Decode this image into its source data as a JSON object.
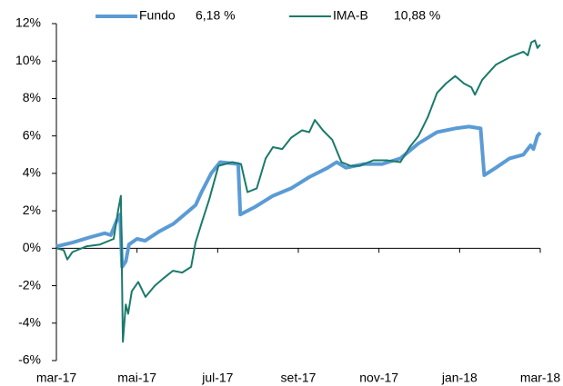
{
  "chart_data": {
    "type": "line",
    "xlim": [
      0,
      12
    ],
    "xticks": [
      {
        "value": 0,
        "label": "mar-17"
      },
      {
        "value": 2,
        "label": "mai-17"
      },
      {
        "value": 4,
        "label": "jul-17"
      },
      {
        "value": 6,
        "label": "set-17"
      },
      {
        "value": 8,
        "label": "nov-17"
      },
      {
        "value": 10,
        "label": "jan-18"
      },
      {
        "value": 12,
        "label": "mar-18"
      }
    ],
    "ylim": [
      -6,
      12
    ],
    "yticks": [
      {
        "value": -6,
        "label": "-6%"
      },
      {
        "value": -4,
        "label": "-4%"
      },
      {
        "value": -2,
        "label": "-2%"
      },
      {
        "value": 0,
        "label": "0%"
      },
      {
        "value": 2,
        "label": "2%"
      },
      {
        "value": 4,
        "label": "4%"
      },
      {
        "value": 6,
        "label": "6%"
      },
      {
        "value": 8,
        "label": "8%"
      },
      {
        "value": 10,
        "label": "10%"
      },
      {
        "value": 12,
        "label": "12%"
      }
    ],
    "series": [
      {
        "name": "Fundo",
        "legend_value": "6,18 %",
        "color": "#5b9bd5",
        "width": 4,
        "x": [
          0,
          0.4,
          0.85,
          1.2,
          1.35,
          1.5,
          1.58,
          1.63,
          1.72,
          1.8,
          2.0,
          2.2,
          2.55,
          2.9,
          3.23,
          3.45,
          3.6,
          3.84,
          4.06,
          4.51,
          4.56,
          4.92,
          5.37,
          5.82,
          6.27,
          6.73,
          6.95,
          7.18,
          7.63,
          8.08,
          8.53,
          8.98,
          9.44,
          9.89,
          10.23,
          10.52,
          10.61,
          10.9,
          11.24,
          11.58,
          11.76,
          11.83,
          11.93,
          12.0
        ],
        "values": [
          0.1,
          0.3,
          0.6,
          0.8,
          0.7,
          1.5,
          1.8,
          -1.0,
          -0.7,
          0.2,
          0.5,
          0.4,
          0.9,
          1.3,
          1.9,
          2.3,
          3.0,
          4.0,
          4.6,
          4.5,
          1.8,
          2.2,
          2.8,
          3.2,
          3.8,
          4.3,
          4.6,
          4.3,
          4.5,
          4.5,
          4.8,
          5.6,
          6.2,
          6.4,
          6.5,
          6.4,
          3.9,
          4.3,
          4.8,
          5.0,
          5.5,
          5.3,
          6.0,
          6.18
        ]
      },
      {
        "name": "IMA-B",
        "legend_value": "10,88 %",
        "color": "#1a7a6a",
        "width": 2,
        "x": [
          0,
          0.18,
          0.27,
          0.4,
          0.74,
          1.08,
          1.42,
          1.53,
          1.6,
          1.65,
          1.72,
          1.78,
          1.87,
          2.03,
          2.21,
          2.44,
          2.66,
          2.89,
          3.12,
          3.34,
          3.45,
          3.61,
          3.79,
          4.02,
          4.36,
          4.58,
          4.74,
          4.97,
          5.19,
          5.37,
          5.6,
          5.82,
          6.09,
          6.27,
          6.41,
          6.61,
          6.84,
          7.07,
          7.29,
          7.52,
          7.86,
          8.19,
          8.53,
          8.76,
          8.98,
          9.21,
          9.44,
          9.66,
          9.89,
          10.11,
          10.29,
          10.38,
          10.56,
          10.9,
          11.24,
          11.58,
          11.69,
          11.78,
          11.87,
          11.93,
          12.0
        ],
        "values": [
          0,
          -0.1,
          -0.6,
          -0.2,
          0.1,
          0.2,
          0.5,
          2.0,
          2.8,
          -5.0,
          -3.0,
          -3.5,
          -2.3,
          -1.8,
          -2.6,
          -2.0,
          -1.6,
          -1.2,
          -1.3,
          -1.0,
          0.3,
          1.4,
          2.6,
          4.4,
          4.6,
          4.5,
          3.0,
          3.2,
          4.8,
          5.4,
          5.3,
          5.9,
          6.3,
          6.2,
          6.85,
          6.3,
          5.8,
          4.6,
          4.4,
          4.4,
          4.7,
          4.7,
          4.6,
          5.4,
          6.0,
          7.0,
          8.3,
          8.8,
          9.2,
          8.8,
          8.6,
          8.2,
          9.0,
          9.8,
          10.2,
          10.5,
          10.3,
          11.0,
          11.1,
          10.7,
          10.88
        ]
      }
    ]
  }
}
